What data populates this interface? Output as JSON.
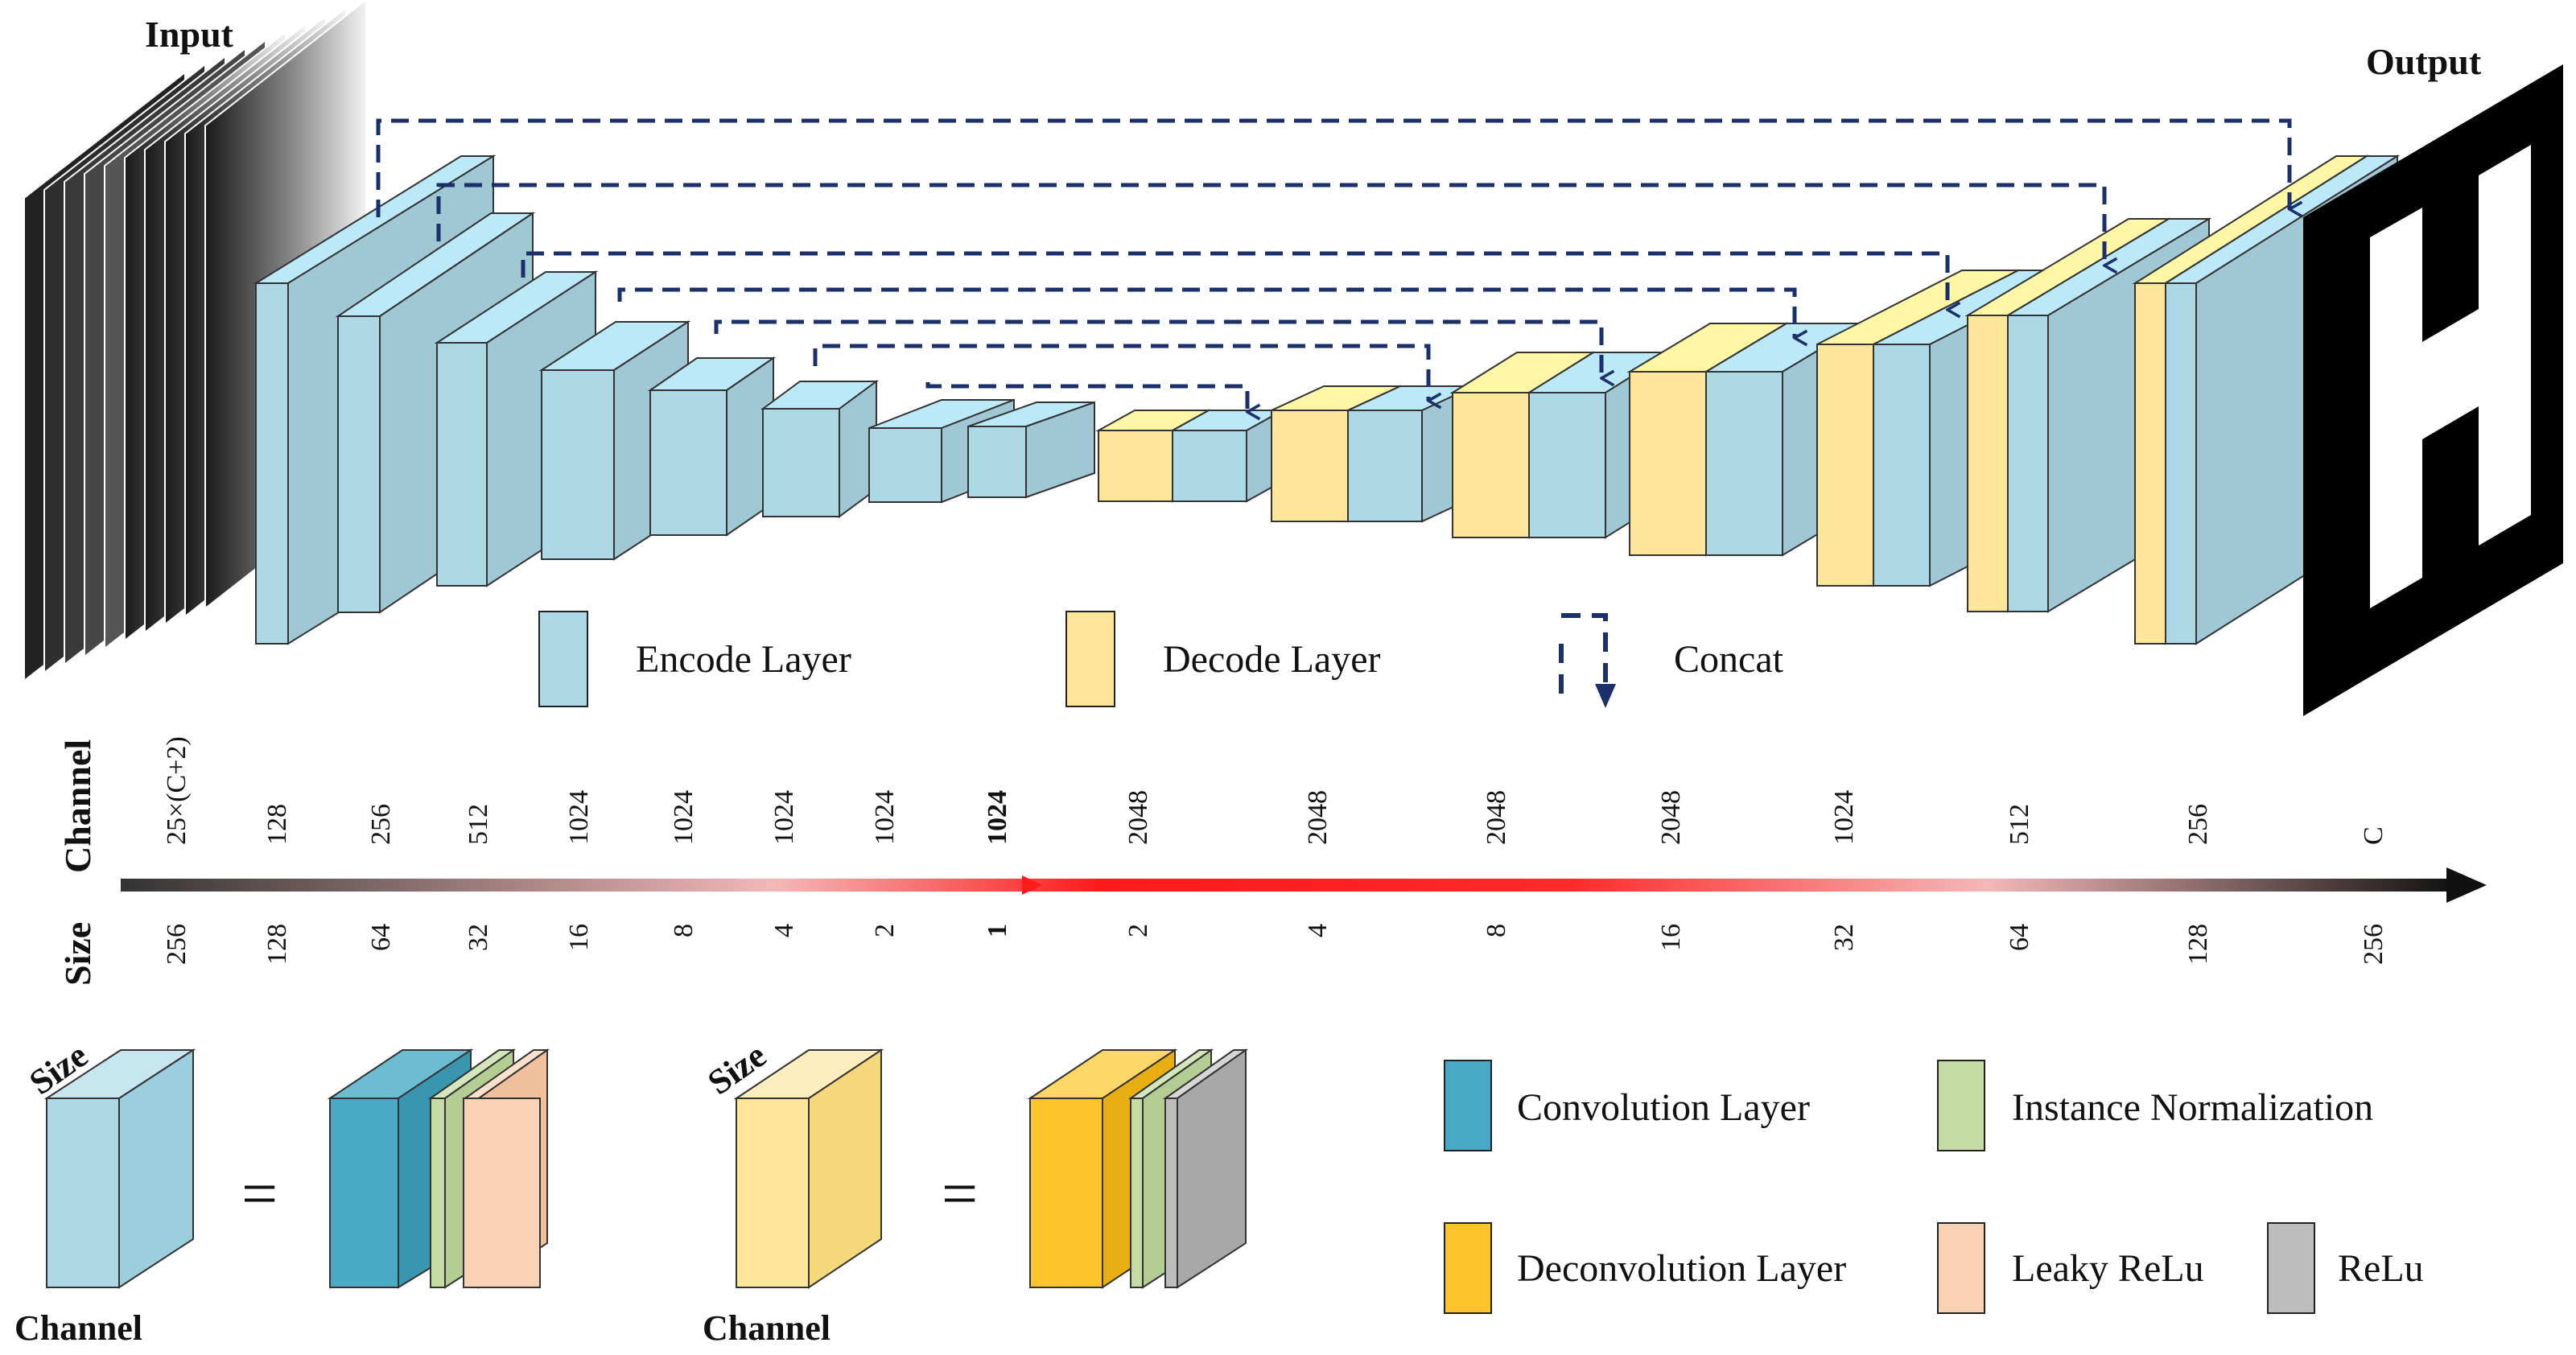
{
  "title_input": "Input",
  "title_output": "Output",
  "legend": {
    "encode": "Encode Layer",
    "decode": "Decode Layer",
    "concat": "Concat"
  },
  "axis": {
    "channel_label": "Channel",
    "size_label": "Size",
    "channels": [
      "25×(C+2)",
      "128",
      "256",
      "512",
      "1024",
      "1024",
      "1024",
      "1024",
      "1024",
      "2048",
      "2048",
      "2048",
      "2048",
      "1024",
      "512",
      "256",
      "C"
    ],
    "sizes": [
      "256",
      "128",
      "64",
      "32",
      "16",
      "8",
      "4",
      "2",
      "1",
      "2",
      "4",
      "8",
      "16",
      "32",
      "64",
      "128",
      "256"
    ],
    "highlight_index": 8
  },
  "explain": {
    "size": "Size",
    "channel": "Channel",
    "equals": "="
  },
  "blocks_legend": {
    "conv": "Convolution Layer",
    "inorm": "Instance Normalization",
    "deconv": "Deconvolution Layer",
    "lrelu": "Leaky ReLu",
    "relu": "ReLu"
  },
  "colors": {
    "encode": "#add8e6",
    "decode": "#fde59a",
    "conv": "#4aa9c4",
    "deconv": "#fdc52b",
    "inorm": "#c5dba4",
    "lrelu": "#f9d2b5",
    "relu": "#bdbdbd",
    "concat": "#1a2f6b",
    "axis_hot": "#ff1a1a"
  }
}
